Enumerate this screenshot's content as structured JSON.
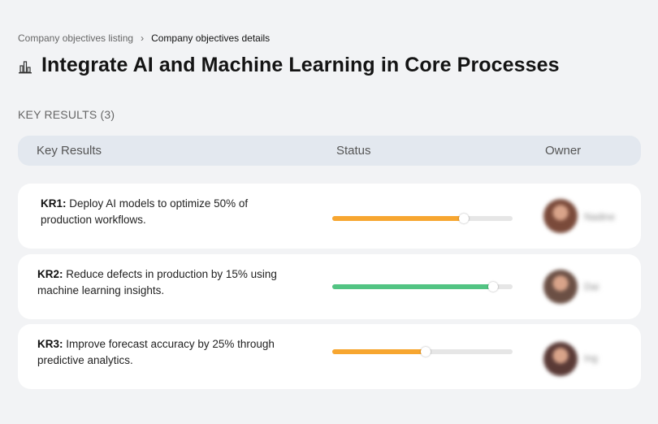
{
  "breadcrumb": {
    "parent": "Company objectives listing",
    "separator": "›",
    "current": "Company objectives details"
  },
  "objective": {
    "title": "Integrate AI and Machine Learning in Core Processes",
    "icon": "building-chart-icon"
  },
  "key_results_label": "KEY RESULTS (3)",
  "table": {
    "headers": {
      "key_results": "Key Results",
      "status": "Status",
      "owner": "Owner"
    }
  },
  "key_results": [
    {
      "code": "KR1:",
      "text": " Deploy AI models to optimize 50% of production workflows.",
      "progress": 0.73,
      "color": "#f7a630",
      "owner": "Nadine",
      "avatar_color": "#7a4a3a"
    },
    {
      "code": "KR2:",
      "text": " Reduce defects in production by 15% using machine learning insights.",
      "progress": 0.89,
      "color": "#52c483",
      "owner": "Dai",
      "avatar_color": "#6b4f44"
    },
    {
      "code": "KR3:",
      "text": " Improve forecast accuracy by 25% through predictive analytics.",
      "progress": 0.52,
      "color": "#f7a630",
      "owner": "Ing",
      "avatar_color": "#5a3a36"
    }
  ]
}
